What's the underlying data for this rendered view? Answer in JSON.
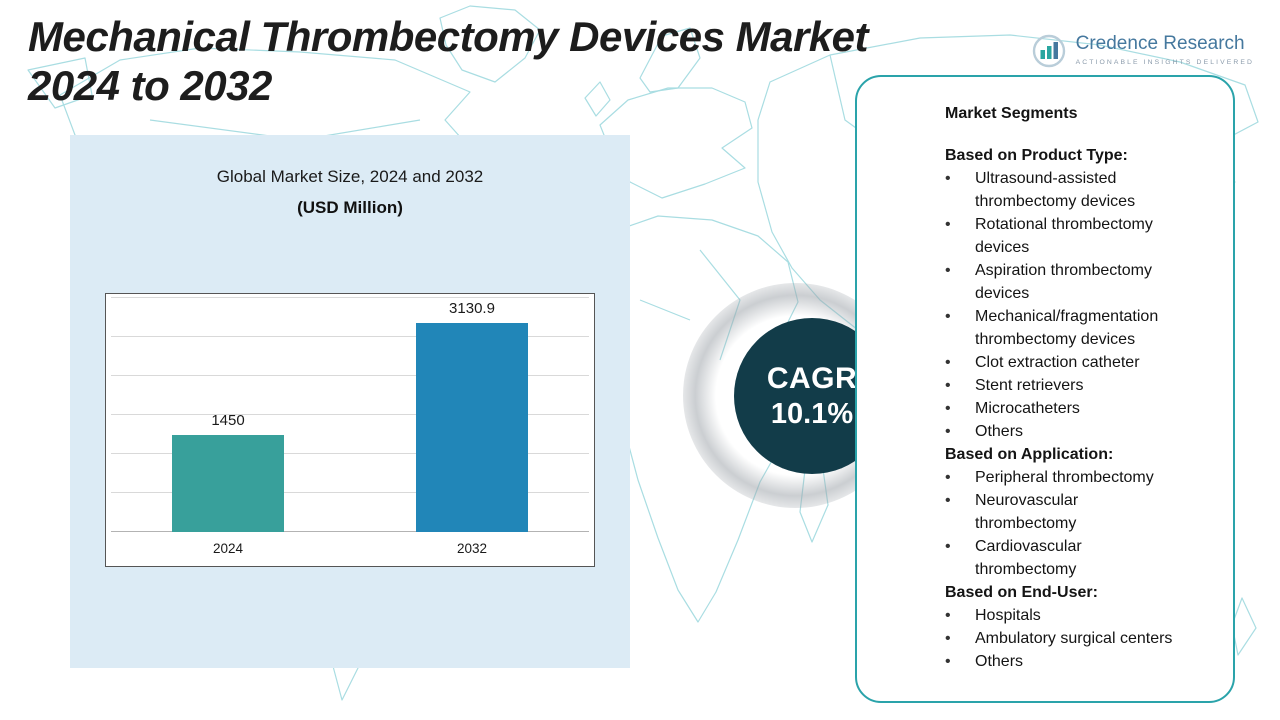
{
  "colors": {
    "title_text": "#1d1d1d",
    "map_line": "#a9dde2",
    "chart_panel_bg": "#dcebf5",
    "bar_2024": "#38a09b",
    "bar_2032": "#2186b8",
    "cagr_circle_bg": "#123c49",
    "cagr_text": "#ffffff",
    "segments_border": "#2aa3aa",
    "logo_blue": "#45789e",
    "logo_teal": "#2aa6a0"
  },
  "header": {
    "title_lines": [
      "Mechanical Thrombectomy Devices Market",
      "2024 to 2032"
    ]
  },
  "logo": {
    "name": "Credence Research",
    "tagline": "Actionable Insights Delivered"
  },
  "chart_data": {
    "type": "bar",
    "title": "Global Market Size, 2024 and 2032",
    "subtitle": "(USD Million)",
    "categories": [
      "2024",
      "2032"
    ],
    "values": [
      1450,
      3130.9
    ],
    "value_labels": [
      "1450",
      "3130.9"
    ],
    "bar_colors": [
      "#38a09b",
      "#2186b8"
    ],
    "ylim": [
      0,
      3500
    ],
    "grid": true,
    "legend": false
  },
  "cagr": {
    "label": "CAGR",
    "value": "10.1%"
  },
  "segments": {
    "heading": "Market Segments",
    "groups": [
      {
        "title": "Based on Product Type:",
        "items": [
          "Ultrasound-assisted thrombectomy devices",
          "Rotational thrombectomy devices",
          "Aspiration thrombectomy devices",
          "Mechanical/fragmentation thrombectomy devices",
          "Clot extraction catheter",
          "Stent retrievers",
          "Microcatheters",
          "Others"
        ]
      },
      {
        "title": "Based on Application:",
        "items": [
          "Peripheral thrombectomy",
          "Neurovascular thrombectomy",
          "Cardiovascular thrombectomy"
        ]
      },
      {
        "title": "Based on End-User:",
        "items": [
          "Hospitals",
          "Ambulatory surgical centers",
          "Others"
        ]
      }
    ]
  },
  "icons": {
    "bullet": "•"
  }
}
